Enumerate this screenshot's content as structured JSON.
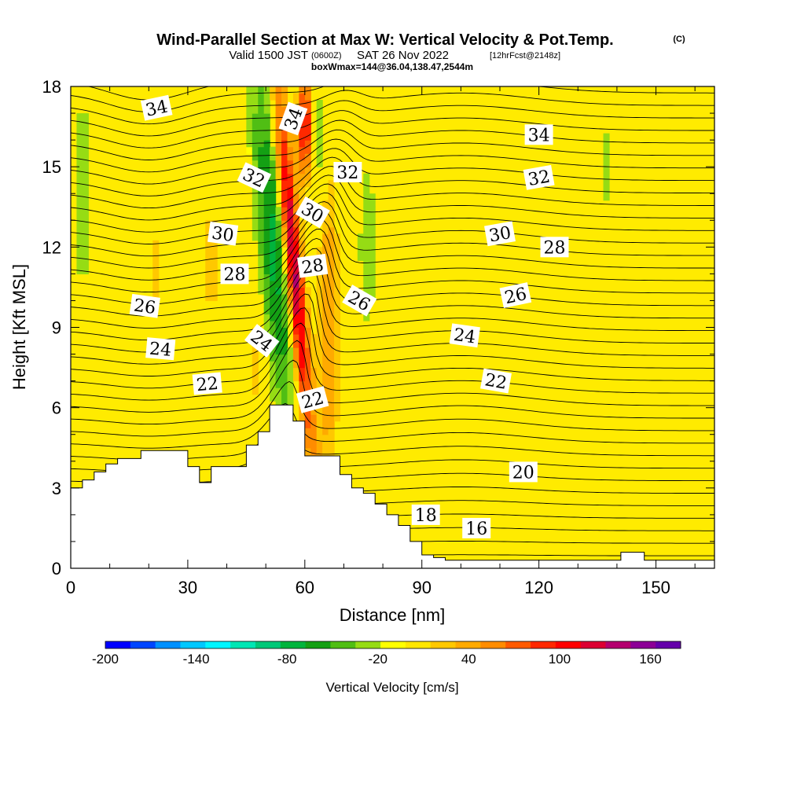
{
  "header": {
    "title": "Wind-Parallel Section at Max W: Vertical Velocity & Pot.Temp.",
    "copyright": "(C)",
    "valid_prefix": "Valid 1500 JST",
    "valid_utc": "(0600Z)",
    "valid_date": "SAT 26 Nov 2022",
    "forecast": "[12hrFcst@2148z]",
    "box_info": "boxWmax=144@36.04,138.47,2544m"
  },
  "chart_data": {
    "type": "heatmap",
    "xlabel": "Distance [nm]",
    "ylabel": "Height [Kft MSL]",
    "xlim": [
      0,
      165
    ],
    "ylim": [
      0,
      18
    ],
    "x_ticks": [
      "0",
      "30",
      "60",
      "90",
      "120",
      "150"
    ],
    "y_ticks": [
      "0",
      "3",
      "6",
      "9",
      "12",
      "15",
      "18"
    ],
    "grid": false,
    "colorbar": {
      "label": "Vertical Velocity [cm/s]",
      "range": [
        -200,
        180
      ],
      "tick_labels": [
        "-200",
        "-140",
        "-80",
        "-20",
        "40",
        "100",
        "160"
      ],
      "colors": [
        "#0000ff",
        "#0046ff",
        "#0090ff",
        "#00c8ff",
        "#00f5ff",
        "#00e6b4",
        "#00c878",
        "#00b43c",
        "#14a014",
        "#50be14",
        "#96dc14",
        "#ffff00",
        "#ffe600",
        "#ffc800",
        "#ffaa00",
        "#ff8c00",
        "#ff5a00",
        "#ff2800",
        "#ff0000",
        "#dc0032",
        "#b4006e",
        "#8c0096",
        "#6400aa"
      ]
    },
    "fill_field": {
      "name": "Vertical Velocity (cm/s)",
      "background": "#ffeb00",
      "features": [
        {
          "x": 52,
          "y": 12.0,
          "wx": 4,
          "wy": 7,
          "tilt": -0.25,
          "w": -75
        },
        {
          "x": 57,
          "y": 11.5,
          "wx": 2.2,
          "wy": 7,
          "tilt": -0.28,
          "w": 150
        },
        {
          "x": 60,
          "y": 16.5,
          "wx": 2,
          "wy": 2,
          "tilt": 0,
          "w": 110
        },
        {
          "x": 63,
          "y": 16.0,
          "wx": 2,
          "wy": 2.5,
          "tilt": 0,
          "w": -40
        },
        {
          "x": 66,
          "y": 9.0,
          "wx": 3,
          "wy": 6,
          "tilt": 0,
          "w": 50
        },
        {
          "x": 76,
          "y": 12.0,
          "wx": 2.2,
          "wy": 3.5,
          "tilt": 0,
          "w": -35
        },
        {
          "x": 3,
          "y": 14.0,
          "wx": 2.5,
          "wy": 5,
          "tilt": 0,
          "w": -28
        },
        {
          "x": 12,
          "y": 13.0,
          "wx": 2,
          "wy": 4,
          "tilt": 0,
          "w": 15
        },
        {
          "x": 22,
          "y": 11.0,
          "wx": 2,
          "wy": 4,
          "tilt": 0,
          "w": 22
        },
        {
          "x": 36,
          "y": 11.5,
          "wx": 2.5,
          "wy": 5,
          "tilt": 0,
          "w": 24
        },
        {
          "x": 42,
          "y": 13.0,
          "wx": 2,
          "wy": 4,
          "tilt": 0,
          "w": 20
        },
        {
          "x": 47,
          "y": 8.0,
          "wx": 2,
          "wy": 2.5,
          "tilt": 0,
          "w": 30
        },
        {
          "x": 137,
          "y": 15.0,
          "wx": 1.5,
          "wy": 2,
          "tilt": 0,
          "w": -30
        },
        {
          "x": 115,
          "y": 14.0,
          "wx": 18,
          "wy": 7,
          "tilt": 0,
          "w": 10
        },
        {
          "x": 130,
          "y": 7.0,
          "wx": 15,
          "wy": 4,
          "tilt": 0,
          "w": 9
        },
        {
          "x": 95,
          "y": 5.0,
          "wx": 10,
          "wy": 3,
          "tilt": 0,
          "w": 8
        }
      ]
    },
    "contours": {
      "name": "Potential Temperature",
      "levels": [
        15.5,
        16,
        16.5,
        17,
        17.5,
        18,
        18.5,
        19,
        19.5,
        20,
        20.5,
        21,
        21.5,
        22,
        22.5,
        23,
        23.5,
        24,
        24.5,
        25,
        25.5,
        26,
        26.5,
        27,
        27.5,
        28,
        28.5,
        29,
        29.5,
        30,
        30.5,
        31,
        31.5,
        32,
        32.5,
        33,
        33.5,
        34,
        34.5,
        35
      ]
    },
    "contour_labels": [
      {
        "text": "34",
        "x": 22,
        "y": 17.2,
        "angle": -12
      },
      {
        "text": "34",
        "x": 57,
        "y": 16.8,
        "angle": -70
      },
      {
        "text": "34",
        "x": 120,
        "y": 16.2,
        "angle": 0
      },
      {
        "text": "32",
        "x": 47,
        "y": 14.6,
        "angle": 25
      },
      {
        "text": "32",
        "x": 71,
        "y": 14.8,
        "angle": 0
      },
      {
        "text": "32",
        "x": 120,
        "y": 14.6,
        "angle": -10
      },
      {
        "text": "30",
        "x": 39,
        "y": 12.5,
        "angle": 8
      },
      {
        "text": "30",
        "x": 62,
        "y": 13.3,
        "angle": 30
      },
      {
        "text": "30",
        "x": 110,
        "y": 12.5,
        "angle": -10
      },
      {
        "text": "28",
        "x": 42,
        "y": 11.0,
        "angle": 0
      },
      {
        "text": "28",
        "x": 62,
        "y": 11.3,
        "angle": -8
      },
      {
        "text": "28",
        "x": 124,
        "y": 12.0,
        "angle": 0
      },
      {
        "text": "26",
        "x": 19,
        "y": 9.8,
        "angle": 8
      },
      {
        "text": "26",
        "x": 74,
        "y": 10.0,
        "angle": 30
      },
      {
        "text": "26",
        "x": 114,
        "y": 10.2,
        "angle": -12
      },
      {
        "text": "24",
        "x": 23,
        "y": 8.2,
        "angle": 5
      },
      {
        "text": "24",
        "x": 49,
        "y": 8.5,
        "angle": 38
      },
      {
        "text": "24",
        "x": 101,
        "y": 8.7,
        "angle": 8
      },
      {
        "text": "22",
        "x": 35,
        "y": 6.9,
        "angle": -5
      },
      {
        "text": "22",
        "x": 62,
        "y": 6.3,
        "angle": -15
      },
      {
        "text": "22",
        "x": 109,
        "y": 7.0,
        "angle": 10
      },
      {
        "text": "20",
        "x": 116,
        "y": 3.6,
        "angle": 0
      },
      {
        "text": "18",
        "x": 91,
        "y": 2.0,
        "angle": 0
      },
      {
        "text": "16",
        "x": 104,
        "y": 1.5,
        "angle": 0
      }
    ],
    "terrain": {
      "x": [
        0,
        3,
        6,
        9,
        12,
        15,
        18,
        21,
        24,
        27,
        30,
        33,
        36,
        39,
        42,
        45,
        48,
        51,
        54,
        57,
        60,
        63,
        66,
        69,
        72,
        75,
        78,
        81,
        84,
        87,
        90,
        93,
        96,
        99,
        102,
        105,
        108,
        111,
        114,
        117,
        120,
        123,
        126,
        129,
        132,
        135,
        138,
        141,
        144,
        147,
        150,
        153,
        156,
        159,
        162,
        165
      ],
      "y": [
        3.0,
        3.3,
        3.6,
        3.9,
        4.1,
        4.1,
        4.4,
        4.4,
        4.4,
        4.4,
        3.8,
        3.2,
        3.8,
        3.8,
        3.8,
        4.6,
        5.1,
        6.1,
        6.1,
        5.5,
        4.2,
        4.2,
        4.2,
        3.5,
        3.0,
        2.8,
        2.4,
        2.0,
        1.6,
        1.0,
        0.5,
        0.4,
        0.3,
        0.3,
        0.3,
        0.3,
        0.3,
        0.3,
        0.3,
        0.3,
        0.3,
        0.3,
        0.3,
        0.3,
        0.3,
        0.3,
        0.3,
        0.6,
        0.6,
        0.3,
        0.3,
        0.3,
        0.3,
        0.3,
        0.3,
        0.3
      ]
    }
  }
}
